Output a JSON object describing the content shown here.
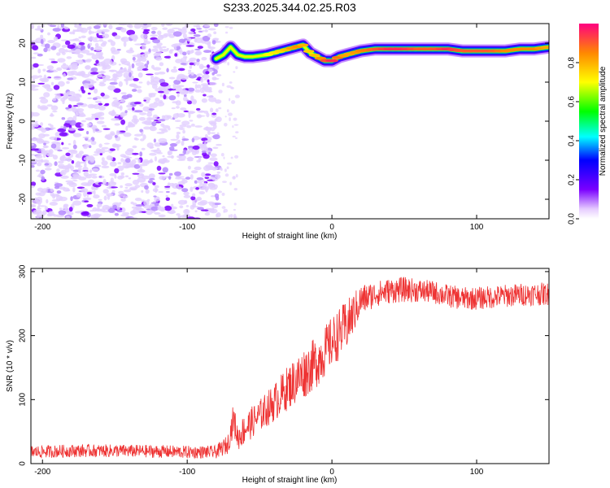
{
  "figure_title": "S233.2025.344.02.25.R03",
  "chart_data": [
    {
      "type": "heatmap",
      "name": "spectrogram",
      "xlabel": "Height of straight line (km)",
      "ylabel": "Frequency (Hz)",
      "xlim": [
        -208,
        150
      ],
      "ylim": [
        -25,
        25
      ],
      "xticks": [
        -200,
        -100,
        0,
        100
      ],
      "xtick_labels": [
        "-200",
        "-100",
        "0",
        "100"
      ],
      "yticks": [
        -20,
        -10,
        0,
        10,
        20
      ],
      "ytick_labels": [
        "-20",
        "-10",
        "0",
        "10",
        "20"
      ],
      "noise_region_x": [
        -208,
        -78
      ],
      "sparse_region_x": [
        -78,
        -65
      ],
      "ridge": {
        "description": "narrow high-amplitude frequency track",
        "x": [
          -80,
          -75,
          -70,
          -65,
          -60,
          -55,
          -45,
          -35,
          -30,
          -25,
          -20,
          -15,
          -10,
          -5,
          0,
          5,
          10,
          20,
          30,
          40,
          50,
          60,
          70,
          80,
          90,
          100,
          110,
          120,
          130,
          140,
          150
        ],
        "y": [
          16,
          17,
          19,
          17,
          16.5,
          16.5,
          17,
          18,
          18.5,
          19,
          19.5,
          17.5,
          16.5,
          15.5,
          15.5,
          16.5,
          17,
          18,
          18.5,
          18.5,
          18.5,
          18.5,
          18.5,
          18.5,
          18,
          18,
          18,
          18,
          18.5,
          18.5,
          19
        ],
        "amplitude": [
          0.3,
          0.35,
          0.45,
          0.45,
          0.55,
          0.6,
          0.7,
          0.75,
          0.8,
          0.85,
          0.8,
          0.75,
          0.8,
          0.9,
          0.95,
          0.85,
          0.8,
          0.85,
          0.9,
          0.95,
          0.95,
          0.9,
          0.9,
          0.95,
          0.9,
          0.9,
          0.9,
          0.85,
          0.85,
          0.85,
          0.8
        ]
      }
    },
    {
      "type": "colorbar",
      "name": "colorbar",
      "label": "Normalized spectral amplitude",
      "range": [
        0,
        1
      ],
      "ticks": [
        0.0,
        0.2,
        0.4,
        0.6,
        0.8
      ],
      "tick_labels": [
        "0.0",
        "0.2",
        "0.4",
        "0.6",
        "0.8"
      ]
    },
    {
      "type": "line",
      "name": "snr",
      "xlabel": "Height of straight line (km)",
      "ylabel": "SNR (10 * v/v)",
      "xlim": [
        -208,
        150
      ],
      "ylim": [
        0,
        305
      ],
      "xticks": [
        -200,
        -100,
        0,
        100
      ],
      "xtick_labels": [
        "-200",
        "-100",
        "0",
        "100"
      ],
      "yticks": [
        0,
        100,
        200,
        300
      ],
      "ytick_labels": [
        "0",
        "100",
        "200",
        "300"
      ],
      "series": [
        {
          "name": "SNR",
          "color": "#ee3333",
          "x": [
            -208,
            -180,
            -150,
            -120,
            -100,
            -80,
            -72,
            -68,
            -65,
            -60,
            -50,
            -40,
            -30,
            -20,
            -10,
            0,
            10,
            20,
            30,
            40,
            50,
            60,
            70,
            80,
            90,
            100,
            110,
            120,
            130,
            140,
            150
          ],
          "y": [
            18,
            20,
            20,
            19,
            18,
            18,
            30,
            70,
            40,
            55,
            75,
            95,
            120,
            140,
            160,
            190,
            215,
            255,
            265,
            270,
            272,
            270,
            268,
            262,
            258,
            258,
            260,
            262,
            264,
            265,
            265
          ],
          "noise_amplitude": [
            10,
            10,
            10,
            10,
            10,
            10,
            15,
            25,
            20,
            25,
            25,
            30,
            35,
            40,
            40,
            40,
            40,
            25,
            20,
            20,
            20,
            18,
            18,
            18,
            18,
            18,
            18,
            18,
            18,
            18,
            18
          ]
        }
      ]
    }
  ]
}
